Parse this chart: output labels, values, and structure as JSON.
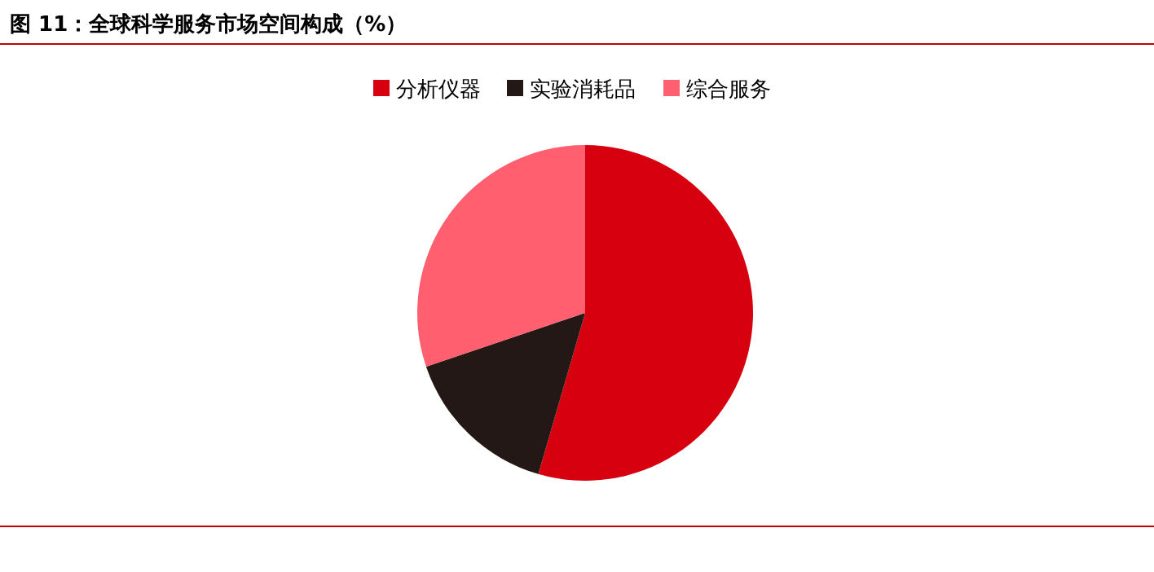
{
  "chart_data": {
    "type": "pie",
    "title": "图 11：全球科学服务市场空间构成（%）",
    "categories": [
      "分析仪器",
      "实验消耗品",
      "综合服务"
    ],
    "values": [
      54.5,
      15.3,
      30.2
    ],
    "colors": [
      "#d7000f",
      "#231815",
      "#ff5f6e"
    ],
    "legend": "top"
  }
}
